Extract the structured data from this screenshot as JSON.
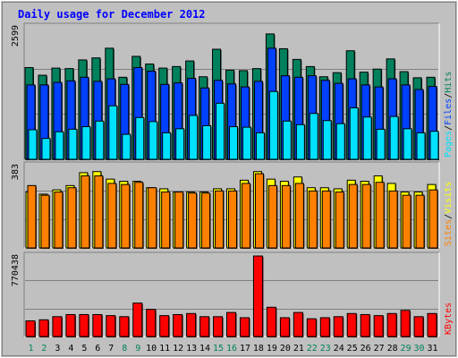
{
  "chart_data": [
    {
      "type": "bar",
      "title": "Daily usage for December 2012",
      "categories": [
        "1",
        "2",
        "3",
        "4",
        "5",
        "6",
        "7",
        "8",
        "9",
        "10",
        "11",
        "12",
        "13",
        "14",
        "15",
        "16",
        "17",
        "18",
        "19",
        "20",
        "21",
        "22",
        "23",
        "24",
        "25",
        "26",
        "27",
        "28",
        "29",
        "30",
        "31"
      ],
      "weekend_days": [
        "1",
        "2",
        "8",
        "9",
        "15",
        "16",
        "22",
        "23",
        "29",
        "30"
      ],
      "ymax_label": "2599",
      "ylim": [
        0,
        2599
      ],
      "ylabel_parts": [
        "Pages",
        "/",
        "Files",
        "/",
        "Hits"
      ],
      "series": [
        {
          "name": "Hits",
          "color": "#00805c",
          "values": [
            1800,
            1650,
            1790,
            1780,
            1950,
            1990,
            2180,
            1610,
            2020,
            1870,
            1790,
            1820,
            1930,
            1620,
            2160,
            1750,
            1740,
            1780,
            2460,
            2170,
            1960,
            1820,
            1620,
            1700,
            2130,
            1710,
            1770,
            1970,
            1720,
            1600,
            1610
          ]
        },
        {
          "name": "Files",
          "color": "#0040ff",
          "values": [
            1460,
            1460,
            1510,
            1540,
            1610,
            1530,
            1580,
            1470,
            1800,
            1730,
            1470,
            1500,
            1590,
            1400,
            1550,
            1480,
            1420,
            1530,
            2180,
            1640,
            1610,
            1640,
            1550,
            1490,
            1580,
            1460,
            1420,
            1580,
            1460,
            1370,
            1430
          ]
        },
        {
          "name": "Pages",
          "color": "#00e0ff",
          "values": [
            580,
            410,
            540,
            590,
            640,
            750,
            1050,
            490,
            820,
            740,
            520,
            600,
            860,
            660,
            1100,
            640,
            630,
            520,
            1330,
            750,
            680,
            900,
            760,
            700,
            1010,
            830,
            590,
            840,
            600,
            520,
            550
          ]
        }
      ]
    },
    {
      "type": "bar",
      "ymax_label": "383",
      "ylim": [
        0,
        383
      ],
      "ylabel_parts": [
        "Sites",
        "/",
        "Visits"
      ],
      "series": [
        {
          "name": "Visits",
          "color": "#ffff00",
          "values": [
            260,
            250,
            270,
            290,
            350,
            355,
            320,
            310,
            310,
            280,
            275,
            260,
            260,
            260,
            275,
            275,
            315,
            355,
            320,
            310,
            330,
            280,
            280,
            275,
            315,
            310,
            335,
            300,
            260,
            260,
            295
          ]
        },
        {
          "name": "Sites",
          "color": "#ff8000",
          "values": [
            290,
            245,
            260,
            280,
            335,
            335,
            300,
            295,
            305,
            280,
            260,
            260,
            255,
            255,
            265,
            265,
            300,
            345,
            290,
            290,
            300,
            265,
            265,
            260,
            295,
            295,
            305,
            265,
            245,
            245,
            270
          ]
        }
      ]
    },
    {
      "type": "bar",
      "ymax_label": "770438",
      "ylim": [
        0,
        770438
      ],
      "ylabel_parts": [
        "KBytes"
      ],
      "series": [
        {
          "name": "KBytes",
          "color": "#ff0000",
          "values": [
            150000,
            160000,
            190000,
            210000,
            210000,
            210000,
            200000,
            190000,
            320000,
            260000,
            200000,
            210000,
            220000,
            190000,
            190000,
            230000,
            180000,
            770438,
            280000,
            180000,
            230000,
            170000,
            180000,
            190000,
            220000,
            210000,
            200000,
            220000,
            250000,
            190000,
            220000
          ]
        }
      ]
    }
  ],
  "colors": {
    "title": "#0000ff",
    "background": "#c0c0c0",
    "plot_background": "#c0c0c0",
    "weekday_label": "#008040",
    "weekend_label": "#00805c",
    "slash": "#000000"
  }
}
